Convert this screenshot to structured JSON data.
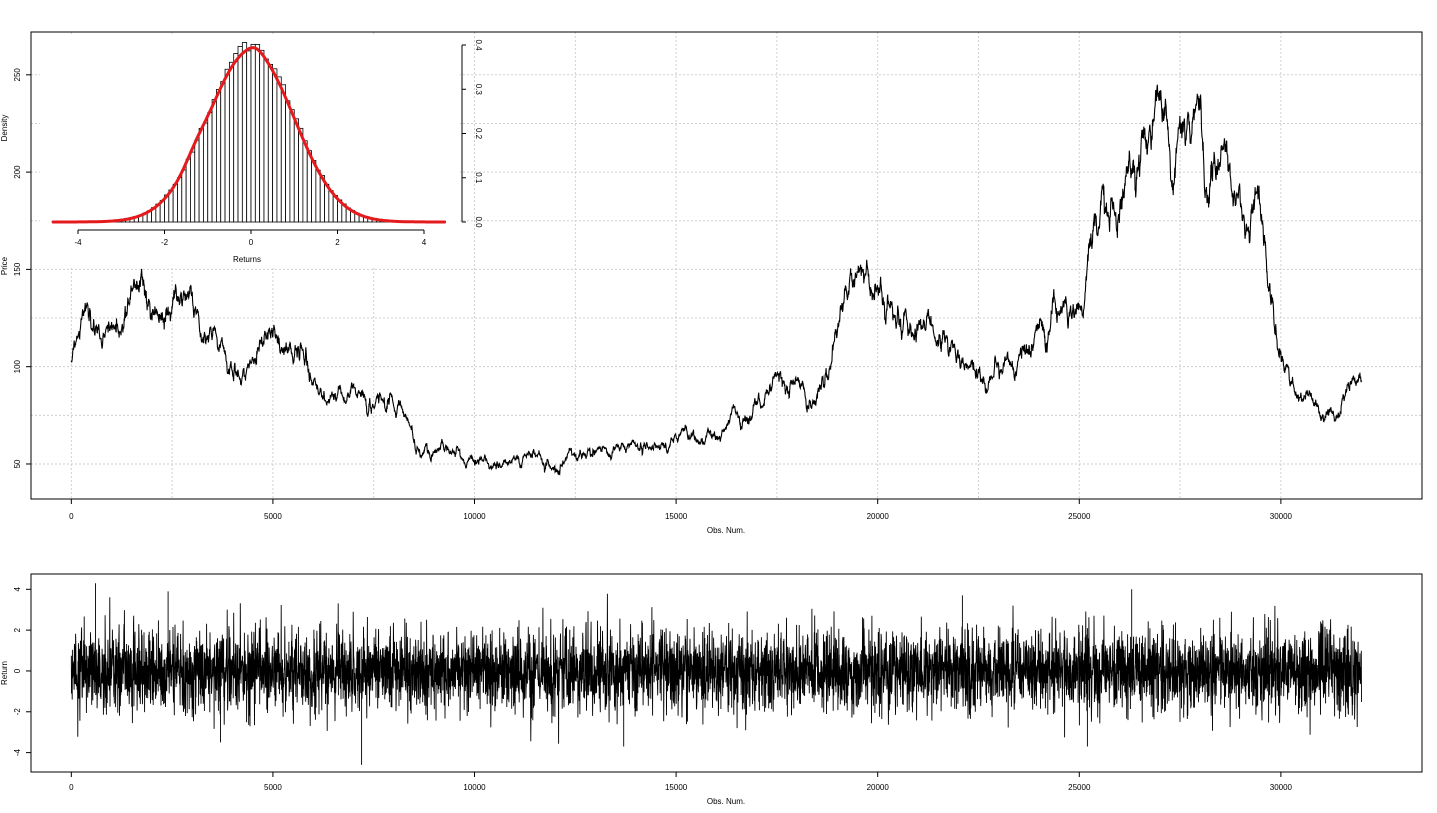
{
  "chart_data": [
    {
      "id": "price",
      "type": "line",
      "xlabel": "Obs. Num.",
      "ylabel": "Price",
      "xlim": [
        -1000,
        33500
      ],
      "ylim": [
        32,
        272
      ],
      "xticks": [
        0,
        5000,
        10000,
        15000,
        20000,
        25000,
        30000
      ],
      "xtick_labels": [
        "0",
        "5000",
        "10000",
        "15000",
        "20000",
        "25000",
        "30000"
      ],
      "yticks": [
        50,
        100,
        150,
        200,
        250
      ],
      "ytick_labels": [
        "50",
        "100",
        "150",
        "200",
        "250"
      ],
      "grid": true,
      "series_color": "#000000",
      "anchors": [
        [
          0,
          102
        ],
        [
          300,
          125
        ],
        [
          600,
          118
        ],
        [
          900,
          114
        ],
        [
          1200,
          122
        ],
        [
          1500,
          138
        ],
        [
          1800,
          150
        ],
        [
          2000,
          134
        ],
        [
          2300,
          125
        ],
        [
          2600,
          142
        ],
        [
          2900,
          134
        ],
        [
          3200,
          126
        ],
        [
          3600,
          118
        ],
        [
          3900,
          104
        ],
        [
          4200,
          92
        ],
        [
          4500,
          104
        ],
        [
          4800,
          116
        ],
        [
          5100,
          112
        ],
        [
          5400,
          106
        ],
        [
          5700,
          114
        ],
        [
          6000,
          94
        ],
        [
          6300,
          83
        ],
        [
          6700,
          86
        ],
        [
          7000,
          88
        ],
        [
          7400,
          84
        ],
        [
          7800,
          80
        ],
        [
          8200,
          74
        ],
        [
          8600,
          62
        ],
        [
          8900,
          55
        ],
        [
          9300,
          58
        ],
        [
          9600,
          56
        ],
        [
          10000,
          52
        ],
        [
          10400,
          51
        ],
        [
          10800,
          50
        ],
        [
          11200,
          53
        ],
        [
          11600,
          55
        ],
        [
          12000,
          50
        ],
        [
          12400,
          52
        ],
        [
          12900,
          58
        ],
        [
          13300,
          55
        ],
        [
          13700,
          58
        ],
        [
          14100,
          60
        ],
        [
          14500,
          56
        ],
        [
          15000,
          64
        ],
        [
          15300,
          68
        ],
        [
          15700,
          58
        ],
        [
          16000,
          64
        ],
        [
          16400,
          72
        ],
        [
          16800,
          76
        ],
        [
          17200,
          84
        ],
        [
          17600,
          92
        ],
        [
          18000,
          96
        ],
        [
          18400,
          86
        ],
        [
          18800,
          104
        ],
        [
          19200,
          126
        ],
        [
          19600,
          144
        ],
        [
          20000,
          148
        ],
        [
          20400,
          130
        ],
        [
          20800,
          124
        ],
        [
          21200,
          114
        ],
        [
          21600,
          112
        ],
        [
          22000,
          104
        ],
        [
          22400,
          94
        ],
        [
          22800,
          98
        ],
        [
          23200,
          100
        ],
        [
          23600,
          106
        ],
        [
          24000,
          112
        ],
        [
          24400,
          124
        ],
        [
          24800,
          126
        ],
        [
          25100,
          132
        ],
        [
          25400,
          172
        ],
        [
          25700,
          182
        ],
        [
          26000,
          196
        ],
        [
          26300,
          204
        ],
        [
          26700,
          214
        ],
        [
          27000,
          246
        ],
        [
          27300,
          216
        ],
        [
          27600,
          226
        ],
        [
          27900,
          240
        ],
        [
          28200,
          200
        ],
        [
          28500,
          202
        ],
        [
          28800,
          188
        ],
        [
          29100,
          174
        ],
        [
          29400,
          192
        ],
        [
          29700,
          140
        ],
        [
          30100,
          100
        ],
        [
          30400,
          90
        ],
        [
          30800,
          84
        ],
        [
          31100,
          76
        ],
        [
          31400,
          78
        ],
        [
          31700,
          86
        ],
        [
          32000,
          92
        ]
      ]
    },
    {
      "id": "return",
      "type": "line",
      "xlabel": "Obs. Num.",
      "ylabel": "Return",
      "xlim": [
        -1000,
        33500
      ],
      "ylim": [
        -4.95,
        4.75
      ],
      "xticks": [
        0,
        5000,
        10000,
        15000,
        20000,
        25000,
        30000
      ],
      "xtick_labels": [
        "0",
        "5000",
        "10000",
        "15000",
        "20000",
        "25000",
        "30000"
      ],
      "yticks": [
        -4,
        -2,
        0,
        2,
        4
      ],
      "ytick_labels": [
        "-4",
        "-2",
        "0",
        "2",
        "4"
      ],
      "grid": false,
      "series_color": "#000000",
      "x_range": [
        0,
        32000
      ],
      "std": 1.0
    },
    {
      "id": "density",
      "type": "bar",
      "overlay": "line",
      "xlabel": "Returns",
      "ylabel": "Density",
      "xlim": [
        -4.8,
        4.6
      ],
      "ylim": [
        0,
        0.4
      ],
      "xticks": [
        -4,
        -2,
        0,
        2,
        4
      ],
      "xtick_labels": [
        "-4",
        "-2",
        "0",
        "2",
        "4"
      ],
      "yticks": [
        0.0,
        0.1,
        0.2,
        0.3,
        0.4
      ],
      "ytick_labels": [
        "0.0",
        "0.1",
        "0.2",
        "0.3",
        "0.4"
      ],
      "yaxis_side": "right",
      "bin_width": 0.1,
      "bins_range": [
        -4.6,
        4.5
      ],
      "density_color": "#e41a1c"
    }
  ]
}
